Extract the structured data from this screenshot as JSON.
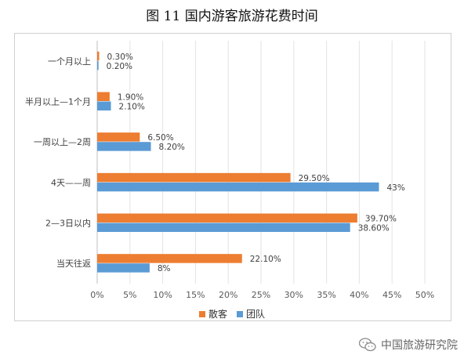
{
  "title": "图 11  国内游客旅游花费时间",
  "chart_data": {
    "type": "bar",
    "orientation": "horizontal",
    "categories": [
      "一个月以上",
      "半月以上—1个月",
      "一周以上—2周",
      "4天——周",
      "2—3日以内",
      "当天往返"
    ],
    "series": [
      {
        "name": "散客",
        "color": "#ED7D31",
        "values": [
          0.3,
          1.9,
          6.5,
          29.5,
          39.7,
          22.1
        ],
        "labels": [
          "0.30%",
          "1.90%",
          "6.50%",
          "29.50%",
          "39.70%",
          "22.10%"
        ]
      },
      {
        "name": "团队",
        "color": "#5B9BD5",
        "values": [
          0.2,
          2.1,
          8.2,
          43,
          38.6,
          8
        ],
        "labels": [
          "0.20%",
          "2.10%",
          "8.20%",
          "43%",
          "38.60%",
          "8%"
        ]
      }
    ],
    "x_ticks": [
      "0%",
      "5%",
      "10%",
      "15%",
      "20%",
      "25%",
      "30%",
      "35%",
      "40%",
      "45%",
      "50%"
    ],
    "xlim": [
      0,
      50
    ],
    "grid": true,
    "legend_position": "bottom"
  },
  "watermark": {
    "text": "中国旅游研究院",
    "icon": "wechat-icon"
  }
}
